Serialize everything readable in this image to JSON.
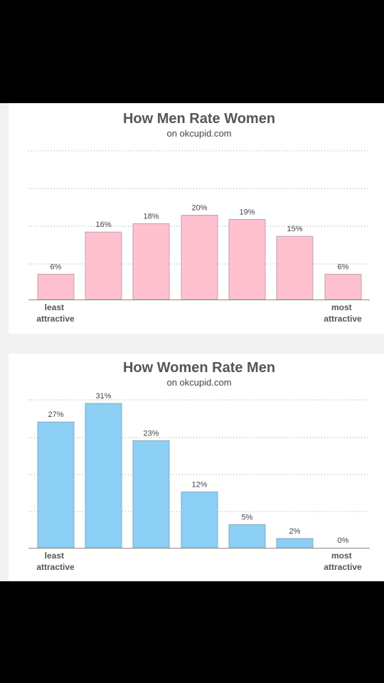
{
  "chart_data": [
    {
      "type": "bar",
      "title": "How Men Rate Women",
      "subtitle": "on okcupid.com",
      "categories": [
        "1",
        "2",
        "3",
        "4",
        "5",
        "6",
        "7"
      ],
      "values": [
        6,
        16,
        18,
        20,
        19,
        15,
        6
      ],
      "value_labels": [
        "6%",
        "16%",
        "18%",
        "20%",
        "19%",
        "15%",
        "6%"
      ],
      "unit": "%",
      "x_left_label": [
        "least",
        "attractive"
      ],
      "x_right_label": [
        "most",
        "attractive"
      ],
      "ylim": [
        0,
        40
      ],
      "grid": "dotted horizontal",
      "bar_color": "#ffc0d0"
    },
    {
      "type": "bar",
      "title": "How Women Rate Men",
      "subtitle": "on okcupid.com",
      "categories": [
        "1",
        "2",
        "3",
        "4",
        "5",
        "6",
        "7"
      ],
      "values": [
        27,
        31,
        23,
        12,
        5,
        2,
        0
      ],
      "value_labels": [
        "27%",
        "31%",
        "23%",
        "12%",
        "5%",
        "2%",
        "0%"
      ],
      "unit": "%",
      "x_left_label": [
        "least",
        "attractive"
      ],
      "x_right_label": [
        "most",
        "attractive"
      ],
      "ylim": [
        0,
        32
      ],
      "grid": "dotted horizontal",
      "bar_color": "#8ccff5"
    }
  ]
}
